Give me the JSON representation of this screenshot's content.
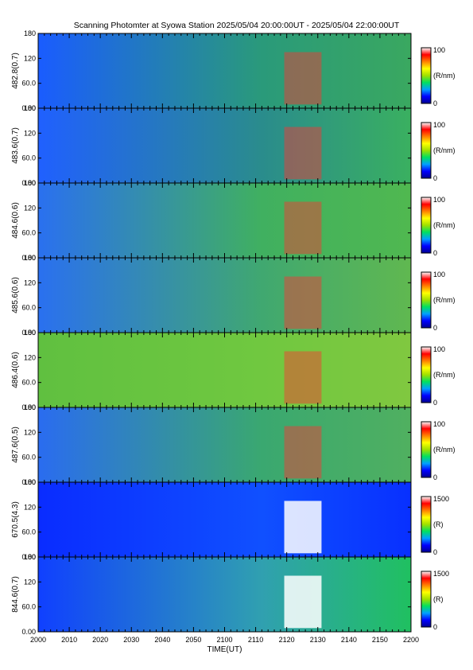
{
  "title": "Scanning Photomter at Syowa Station 2025/05/04 20:00:00UT - 2025/05/04 22:00:00UT",
  "chart_data": {
    "type": "heatmap",
    "xlabel": "TIME(UT)",
    "x_ticks": [
      "2000",
      "2010",
      "2020",
      "2030",
      "2040",
      "2050",
      "2100",
      "2110",
      "2120",
      "2130",
      "2140",
      "2150",
      "2200"
    ],
    "y_ticks": [
      "0.00",
      "60.0",
      "120",
      "180"
    ],
    "ylim": [
      0,
      180
    ],
    "colormap": [
      "#000090",
      "#0000ff",
      "#00a0ff",
      "#00e060",
      "#a0e000",
      "#ffff00",
      "#ff8000",
      "#ff0000",
      "#ffffff"
    ],
    "panels": [
      {
        "ylabel": "482.8(0.7)",
        "colorbar": {
          "max_label": "100",
          "min_label": "0",
          "unit": "(R/nm)"
        }
      },
      {
        "ylabel": "483.6(0.7)",
        "colorbar": {
          "max_label": "100",
          "min_label": "0",
          "unit": "(R/nm)"
        }
      },
      {
        "ylabel": "484.6(0.6)",
        "colorbar": {
          "max_label": "100",
          "min_label": "0",
          "unit": "(R/nm)"
        }
      },
      {
        "ylabel": "485.6(0.6)",
        "colorbar": {
          "max_label": "100",
          "min_label": "0",
          "unit": "(R/nm)"
        }
      },
      {
        "ylabel": "486.4(0.6)",
        "colorbar": {
          "max_label": "100",
          "min_label": "0",
          "unit": "(R/nm)"
        }
      },
      {
        "ylabel": "487.6(0.5)",
        "colorbar": {
          "max_label": "100",
          "min_label": "0",
          "unit": "(R/nm)"
        }
      },
      {
        "ylabel": "670.5(4.3)",
        "colorbar": {
          "max_label": "1500",
          "min_label": "0",
          "unit": "(R)"
        }
      },
      {
        "ylabel": "844.6(0.7)",
        "colorbar": {
          "max_label": "1500",
          "min_label": "0",
          "unit": "(R)"
        }
      }
    ]
  }
}
